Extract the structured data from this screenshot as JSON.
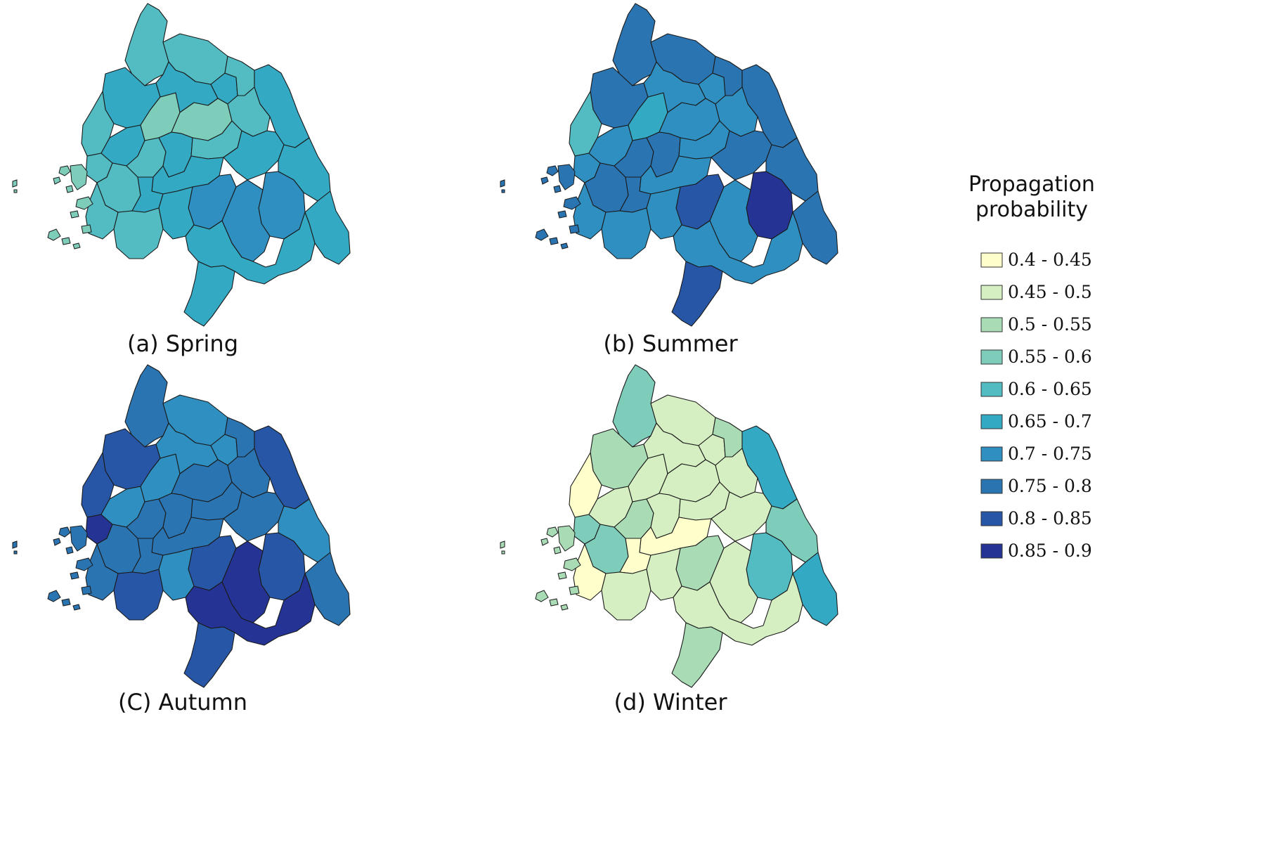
{
  "panels": [
    {
      "id": "spring",
      "caption": "(a) Spring",
      "classes": {
        "r1": 4,
        "r2": 5,
        "r3": 4,
        "r4": 4,
        "r5": 5,
        "r6": 3,
        "r7": 4,
        "r8": 4,
        "r9": 4,
        "r10": 5,
        "r11": 5,
        "r12": 3,
        "r13": 4,
        "r14": 5,
        "r15": 4,
        "r16": 5,
        "r17": 4,
        "r18": 5,
        "r19": 5,
        "r20": 5,
        "r21": 5,
        "r22": 6,
        "r23": 5,
        "r24": 6,
        "r25": 4,
        "r26": 4,
        "r27": 5,
        "r28": 6,
        "r29": 5,
        "r30": 5,
        "islands": 3
      }
    },
    {
      "id": "summer",
      "caption": "(b) Summer",
      "classes": {
        "r1": 7,
        "r2": 7,
        "r3": 4,
        "r4": 6,
        "r5": 6,
        "r6": 5,
        "r7": 7,
        "r8": 7,
        "r9": 7,
        "r10": 6,
        "r11": 6,
        "r12": 6,
        "r13": 7,
        "r14": 7,
        "r15": 6,
        "r16": 7,
        "r17": 6,
        "r18": 6,
        "r19": 7,
        "r20": 7,
        "r21": 7,
        "r22": 8,
        "r23": 6,
        "r24": 9,
        "r25": 6,
        "r26": 6,
        "r27": 7,
        "r28": 6,
        "r29": 6,
        "r30": 8,
        "islands": 7
      }
    },
    {
      "id": "autumn",
      "caption": "(C) Autumn",
      "classes": {
        "r1": 7,
        "r2": 8,
        "r3": 8,
        "r4": 9,
        "r5": 6,
        "r6": 6,
        "r7": 7,
        "r8": 7,
        "r9": 6,
        "r10": 6,
        "r11": 6,
        "r12": 7,
        "r13": 7,
        "r14": 8,
        "r15": 7,
        "r16": 7,
        "r17": 7,
        "r18": 7,
        "r19": 7,
        "r20": 7,
        "r21": 6,
        "r22": 8,
        "r23": 6,
        "r24": 8,
        "r25": 7,
        "r26": 8,
        "r27": 7,
        "r28": 9,
        "r29": 9,
        "r30": 8,
        "islands": 7
      }
    },
    {
      "id": "winter",
      "caption": "(d) Winter",
      "classes": {
        "r1": 3,
        "r2": 2,
        "r3": 0,
        "r4": 3,
        "r5": 1,
        "r6": 1,
        "r7": 3,
        "r8": 2,
        "r9": 1,
        "r10": 1,
        "r11": 1,
        "r12": 1,
        "r13": 2,
        "r14": 5,
        "r15": 1,
        "r16": 1,
        "r17": 1,
        "r18": 0,
        "r19": 0,
        "r20": 1,
        "r21": 3,
        "r22": 2,
        "r23": 1,
        "r24": 4,
        "r25": 0,
        "r26": 1,
        "r27": 5,
        "r28": 1,
        "r29": 1,
        "r30": 2,
        "islands": 2
      }
    }
  ],
  "legend": {
    "title_line1": "Propagation",
    "title_line2": "probability",
    "items": [
      {
        "label": "0.4 - 0.45",
        "color": "#ffffcc"
      },
      {
        "label": "0.45 - 0.5",
        "color": "#d6efc2"
      },
      {
        "label": "0.5 - 0.55",
        "color": "#a9dcb5"
      },
      {
        "label": "0.55 - 0.6",
        "color": "#7ecdbb"
      },
      {
        "label": "0.6 - 0.65",
        "color": "#52bcc2"
      },
      {
        "label": "0.65 - 0.7",
        "color": "#34a9c3"
      },
      {
        "label": "0.7 - 0.75",
        "color": "#2f8fc0"
      },
      {
        "label": "0.75 - 0.8",
        "color": "#2b74b2"
      },
      {
        "label": "0.8 - 0.85",
        "color": "#2856a6"
      },
      {
        "label": "0.85 - 0.9",
        "color": "#253494"
      }
    ]
  }
}
